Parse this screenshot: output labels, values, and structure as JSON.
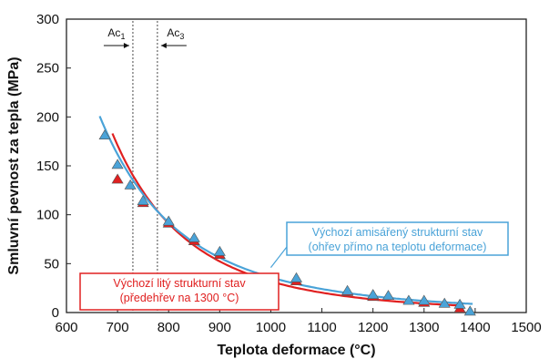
{
  "chart_data": {
    "type": "scatter",
    "xlabel": "Teplota deformace (°C)",
    "ylabel": "Smluvní pevnost za tepla (MPa)",
    "xlim": [
      600,
      1500
    ],
    "ylim": [
      0,
      300
    ],
    "xticks": [
      600,
      700,
      800,
      900,
      1000,
      1100,
      1200,
      1300,
      1400,
      1500
    ],
    "yticks": [
      0,
      50,
      100,
      150,
      200,
      250,
      300
    ],
    "grid": false,
    "vlines": [
      {
        "label_base": "Ac",
        "label_sub": "1",
        "x": 730
      },
      {
        "label_base": "Ac",
        "label_sub": "3",
        "x": 778
      }
    ],
    "series": [
      {
        "legend_lines": [
          "Výchozí litý strukturní stav",
          "(předehřev na 1300 °C)"
        ],
        "color": "#e02020",
        "marker": "triangle",
        "points": [
          [
            700,
            136
          ],
          [
            750,
            112
          ],
          [
            800,
            91
          ],
          [
            850,
            73
          ],
          [
            900,
            59
          ],
          [
            1050,
            32
          ],
          [
            1150,
            21
          ],
          [
            1200,
            16
          ],
          [
            1300,
            10
          ],
          [
            1370,
            4
          ]
        ]
      },
      {
        "legend_lines": [
          "Výchozí amisářený strukturní stav",
          "(ohřev přímo na teplotu deformace)"
        ],
        "color": "#4aa3d8",
        "marker": "triangle",
        "points": [
          [
            675,
            181
          ],
          [
            700,
            151
          ],
          [
            725,
            130
          ],
          [
            750,
            114
          ],
          [
            800,
            93
          ],
          [
            850,
            76
          ],
          [
            900,
            62
          ],
          [
            1050,
            35
          ],
          [
            1150,
            22
          ],
          [
            1200,
            18
          ],
          [
            1230,
            17
          ],
          [
            1270,
            12
          ],
          [
            1300,
            12
          ],
          [
            1340,
            9
          ],
          [
            1370,
            8
          ],
          [
            1390,
            1
          ]
        ]
      }
    ]
  }
}
